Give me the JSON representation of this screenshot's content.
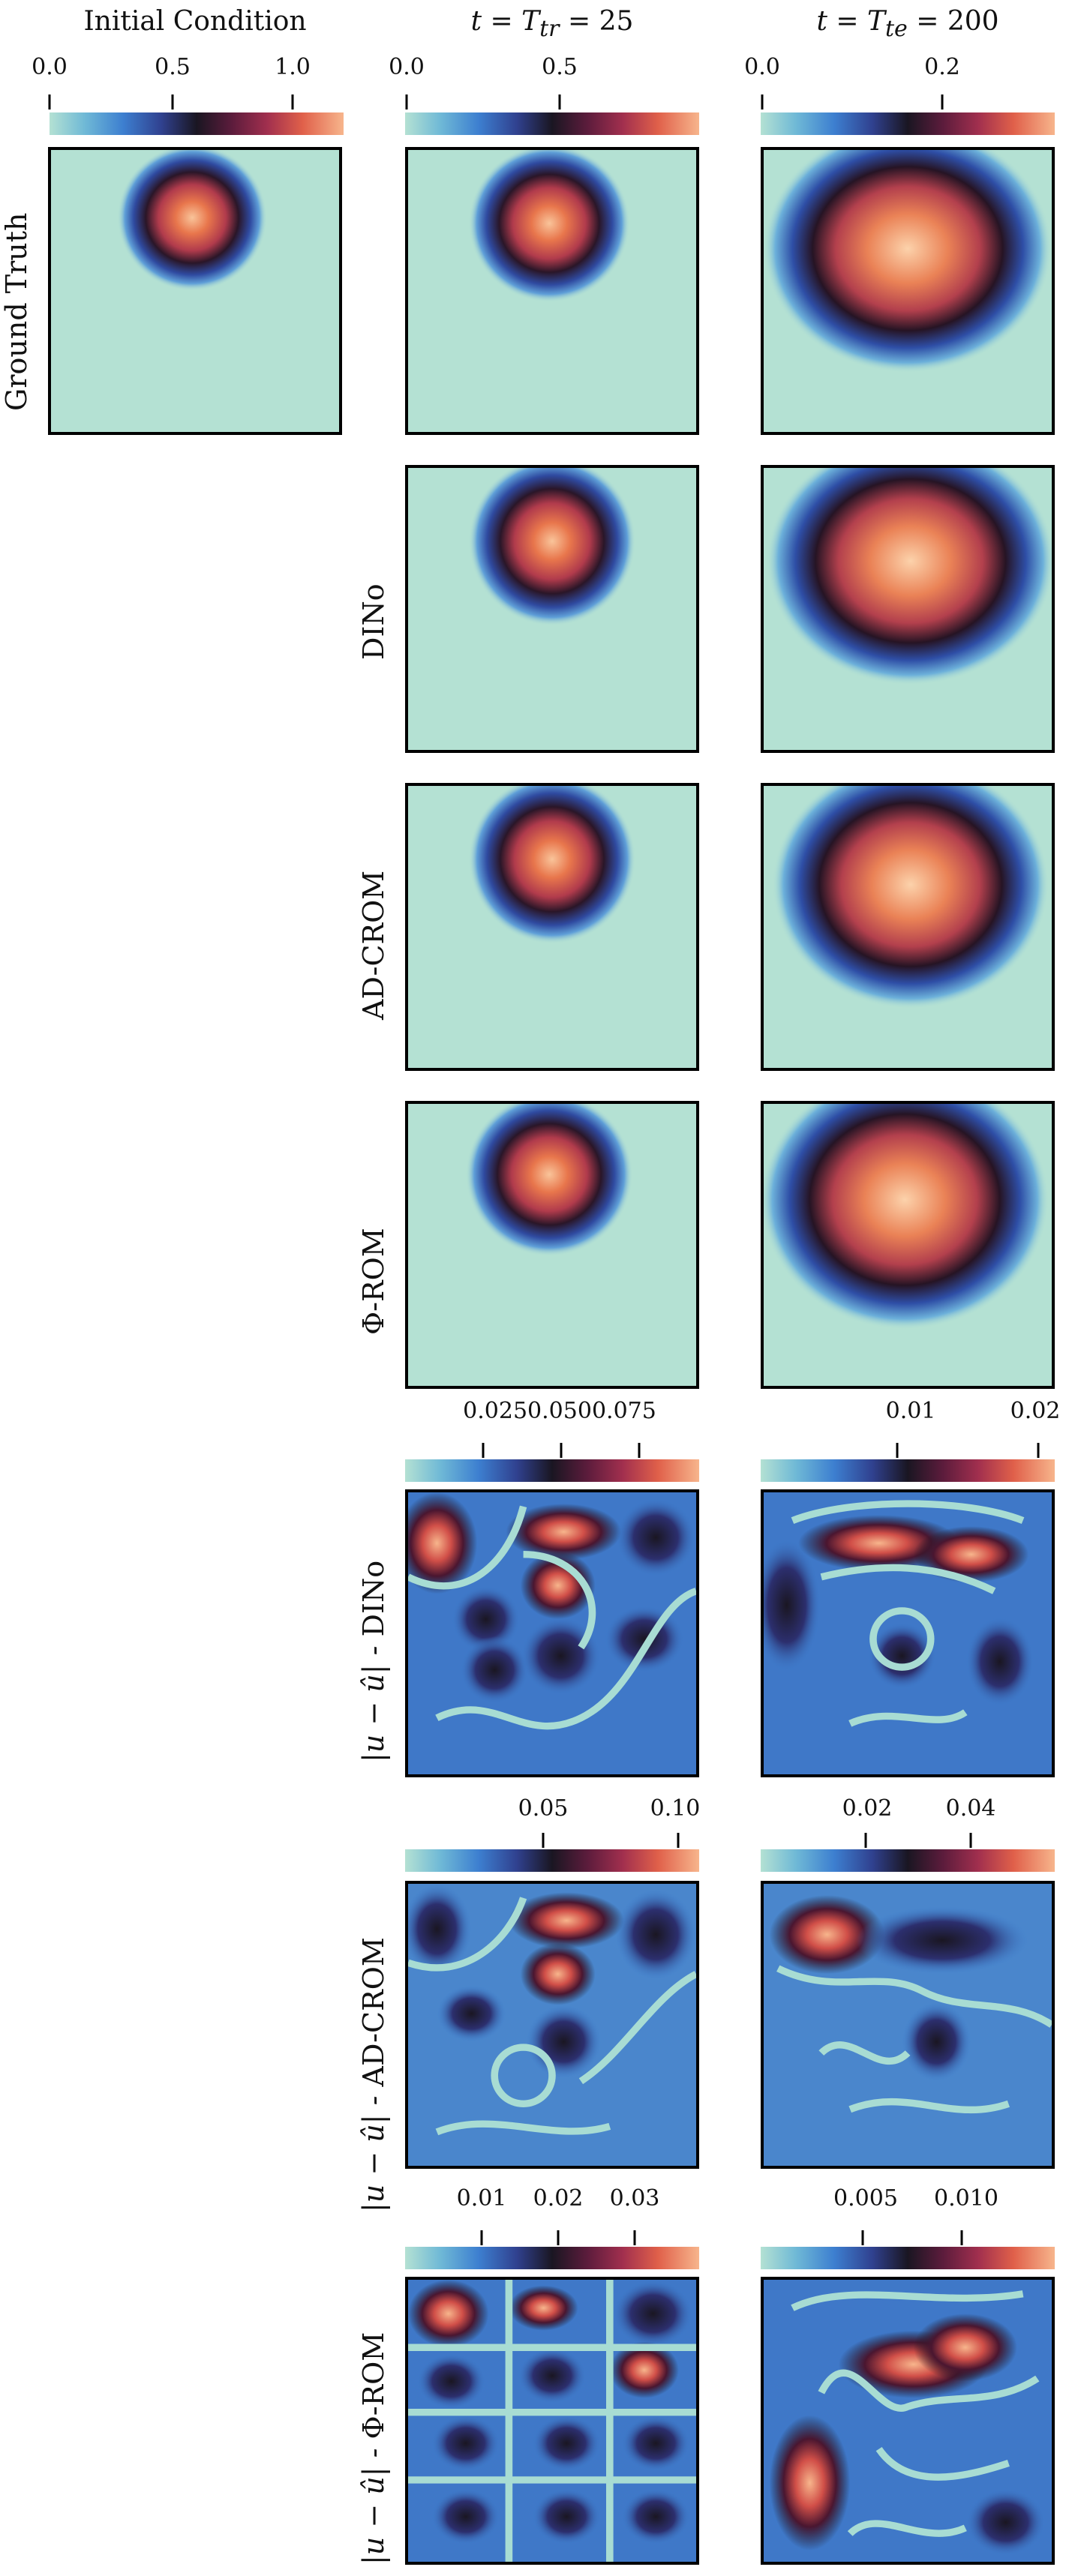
{
  "columns": [
    {
      "title": "Initial Condition"
    },
    {
      "title_prefix": "t = T",
      "title_sub": "tr",
      "title_suffix": " = 25"
    },
    {
      "title_prefix": "t = T",
      "title_sub": "te",
      "title_suffix": " = 200"
    }
  ],
  "row_labels": {
    "ground_truth": "Ground Truth",
    "dino": "DINo",
    "adcrom": "AD-CROM",
    "phirom": "Φ-ROM",
    "err_prefix": "|u − û| - ",
    "err_dino": "DINo",
    "err_adcrom": "AD-CROM",
    "err_phirom": "Φ-ROM"
  },
  "colorbars": {
    "initial": [
      "0.0",
      "0.5",
      "1.0"
    ],
    "t25": [
      "0.0",
      "0.5"
    ],
    "t200": [
      "0.0",
      "0.2"
    ],
    "err_dino_t25": [
      "0.0250.0500.075"
    ],
    "err_dino_t200": [
      "0.01",
      "0.02"
    ],
    "err_adcrom_t25": [
      "0.05",
      "0.10"
    ],
    "err_adcrom_t200": [
      "0.02",
      "0.04"
    ],
    "err_phirom_t25": [
      "0.01",
      "0.02",
      "0.03"
    ],
    "err_phirom_t200": [
      "0.005",
      "0.010"
    ]
  },
  "colormap": [
    "#b4e1d3",
    "#3d7fd0",
    "#1a1622",
    "#a12f4e",
    "#f7b58c"
  ]
}
